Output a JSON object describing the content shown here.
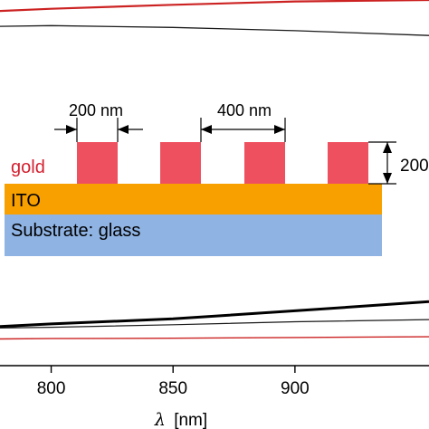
{
  "chart_data": {
    "type": "line",
    "title": "",
    "xlabel": "λ [nm]",
    "xlabel_italic_part": "λ",
    "xlabel_unit": "[nm]",
    "ylabel": "",
    "xlim": [
      779,
      955
    ],
    "x_ticks": [
      800,
      850,
      900
    ],
    "x_tick_labels": [
      "800",
      "850",
      "900"
    ],
    "ylim": [
      0,
      1
    ],
    "grid": false,
    "legend": "none",
    "series": [
      {
        "color": "#cc2222",
        "width": 2.2,
        "x": [
          779,
          800,
          850,
          900,
          955
        ],
        "y": [
          0.97,
          0.976,
          0.987,
          0.996,
          1.0
        ]
      },
      {
        "color": "#1a1a1a",
        "width": 1.3,
        "x": [
          779,
          800,
          850,
          900,
          955
        ],
        "y": [
          0.928,
          0.93,
          0.925,
          0.916,
          0.903
        ]
      },
      {
        "color": "#000000",
        "width": 3.0,
        "x": [
          779,
          800,
          850,
          900,
          955
        ],
        "y": [
          0.107,
          0.114,
          0.128,
          0.15,
          0.175
        ]
      },
      {
        "color": "#1a1a1a",
        "width": 1.2,
        "x": [
          779,
          800,
          850,
          900,
          955
        ],
        "y": [
          0.103,
          0.105,
          0.112,
          0.12,
          0.126
        ]
      },
      {
        "color": "#cc2222",
        "width": 1.4,
        "x": [
          779,
          800,
          850,
          900,
          955
        ],
        "y": [
          0.073,
          0.074,
          0.075,
          0.077,
          0.079
        ]
      }
    ]
  },
  "inset": {
    "gold_label": "gold",
    "ito_label": "ITO",
    "substrate_label": "Substrate: glass",
    "width_label": "200 nm",
    "period_label": "400 nm",
    "height_label": "200",
    "colors": {
      "gold": "#ef5060",
      "gold_text": "#d42030",
      "ito": "#f8a000",
      "substrate": "#8fb3e3",
      "ink": "#000000"
    }
  }
}
